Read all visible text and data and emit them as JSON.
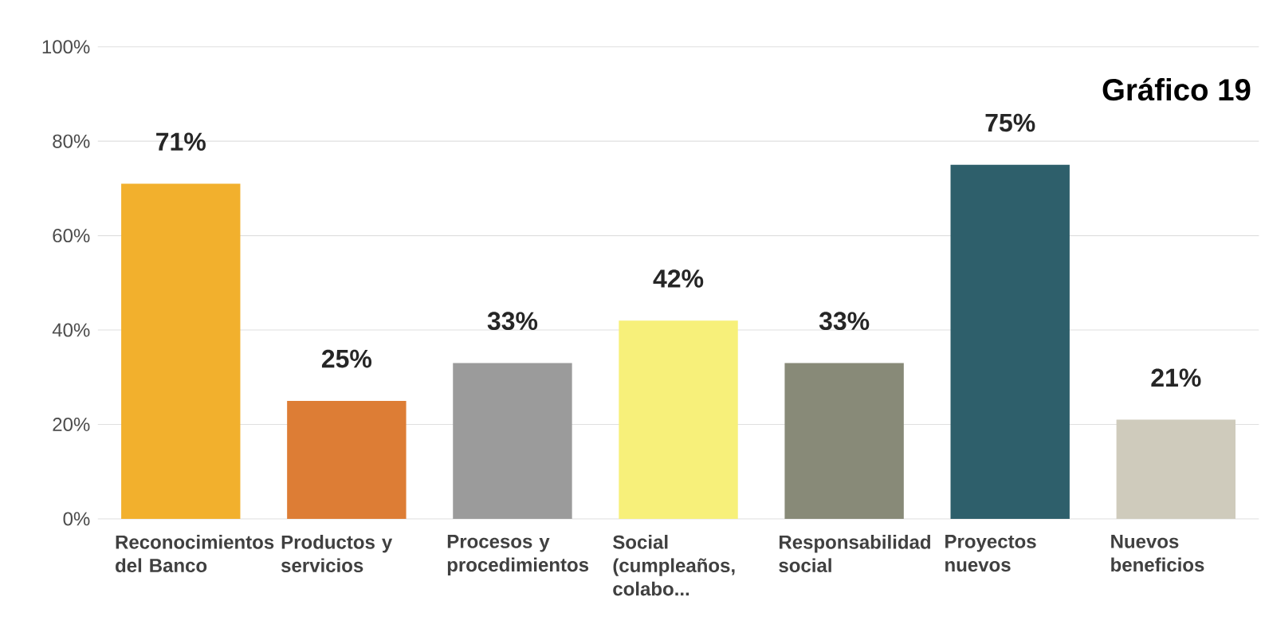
{
  "chart_data": {
    "type": "bar",
    "categories": [
      "Reconocimientos del Banco",
      "Productos y servicios",
      "Procesos y procedimientos",
      "Social (cumpleaños, colabo...",
      "Responsabilidad social",
      "Proyectos nuevos",
      "Nuevos beneficios"
    ],
    "values": [
      71,
      25,
      33,
      42,
      33,
      75,
      21
    ],
    "value_labels": [
      "71%",
      "25%",
      "33%",
      "42%",
      "33%",
      "75%",
      "21%"
    ],
    "colors": [
      "#f2b02d",
      "#dd7d35",
      "#9b9b9b",
      "#f7f07a",
      "#888a78",
      "#2e5f6b",
      "#cfcbbc"
    ],
    "ylim": [
      0,
      100
    ],
    "yticks": [
      {
        "value": 0,
        "label": "0%"
      },
      {
        "value": 20,
        "label": "20%"
      },
      {
        "value": 40,
        "label": "40%"
      },
      {
        "value": 60,
        "label": "60%"
      },
      {
        "value": 80,
        "label": "80%"
      },
      {
        "value": 100,
        "label": "100%"
      }
    ],
    "grid": "y",
    "annotations": [
      "Gráfico 19"
    ]
  }
}
